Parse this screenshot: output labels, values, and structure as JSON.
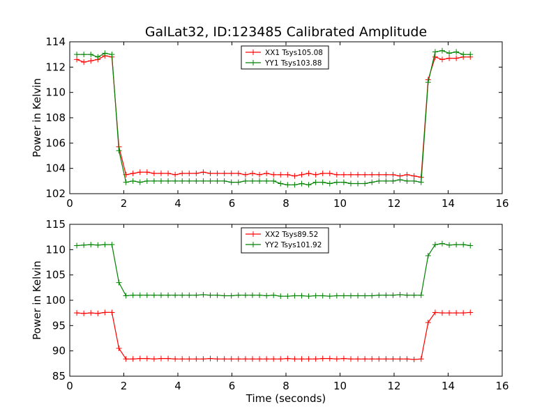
{
  "figure_title": "GalLat32, ID:123485 Calibrated Amplitude",
  "colors": {
    "xx": "#ff0000",
    "yy": "#008000",
    "axes": "#000000",
    "background": "#ffffff"
  },
  "chart_data": [
    {
      "type": "line",
      "title": "GalLat32, ID:123485 Calibrated Amplitude",
      "xlabel": "",
      "ylabel": "Power in Kelvin",
      "xlim": [
        0,
        16
      ],
      "ylim": [
        102,
        114
      ],
      "xticks": [
        0,
        2,
        4,
        6,
        8,
        10,
        12,
        14,
        16
      ],
      "yticks": [
        102,
        104,
        106,
        108,
        110,
        112,
        114
      ],
      "grid": false,
      "legend_position": "top-center",
      "marker": "plus",
      "x": [
        0.26,
        0.52,
        0.78,
        1.04,
        1.3,
        1.56,
        1.82,
        2.08,
        2.34,
        2.6,
        2.86,
        3.12,
        3.38,
        3.64,
        3.9,
        4.16,
        4.42,
        4.68,
        4.94,
        5.2,
        5.46,
        5.72,
        5.98,
        6.24,
        6.5,
        6.76,
        7.02,
        7.28,
        7.54,
        7.8,
        8.06,
        8.32,
        8.58,
        8.84,
        9.1,
        9.36,
        9.62,
        9.88,
        10.14,
        10.4,
        10.66,
        10.92,
        11.18,
        11.44,
        11.7,
        11.96,
        12.22,
        12.48,
        12.74,
        13.0,
        13.26,
        13.52,
        13.78,
        14.04,
        14.3,
        14.56,
        14.82
      ],
      "series": [
        {
          "name": "XX1 Tsys105.08",
          "color": "#ff0000",
          "values": [
            112.6,
            112.4,
            112.5,
            112.6,
            112.9,
            112.8,
            105.7,
            103.5,
            103.6,
            103.7,
            103.7,
            103.6,
            103.6,
            103.6,
            103.5,
            103.6,
            103.6,
            103.6,
            103.7,
            103.6,
            103.6,
            103.6,
            103.6,
            103.6,
            103.5,
            103.6,
            103.5,
            103.6,
            103.5,
            103.5,
            103.5,
            103.4,
            103.5,
            103.6,
            103.5,
            103.6,
            103.6,
            103.5,
            103.5,
            103.5,
            103.5,
            103.5,
            103.5,
            103.5,
            103.5,
            103.5,
            103.4,
            103.5,
            103.4,
            103.3,
            111.0,
            112.8,
            112.6,
            112.7,
            112.7,
            112.8,
            112.8
          ]
        },
        {
          "name": "YY1 Tsys103.88",
          "color": "#008000",
          "values": [
            113.0,
            113.0,
            113.0,
            112.8,
            113.1,
            113.0,
            105.4,
            102.9,
            103.0,
            102.9,
            103.0,
            103.0,
            103.0,
            103.0,
            103.0,
            103.0,
            103.0,
            103.0,
            103.0,
            103.0,
            103.0,
            103.0,
            102.9,
            102.9,
            103.0,
            103.0,
            103.0,
            103.0,
            103.0,
            102.8,
            102.7,
            102.7,
            102.8,
            102.7,
            102.9,
            102.9,
            102.8,
            102.9,
            102.9,
            102.8,
            102.8,
            102.8,
            102.9,
            103.0,
            103.0,
            103.0,
            103.1,
            103.0,
            103.0,
            102.9,
            110.8,
            113.2,
            113.3,
            113.1,
            113.2,
            113.0,
            113.0
          ]
        }
      ]
    },
    {
      "type": "line",
      "title": "",
      "xlabel": "Time (seconds)",
      "ylabel": "Power in Kelvin",
      "xlim": [
        0,
        16
      ],
      "ylim": [
        85,
        115
      ],
      "xticks": [
        0,
        2,
        4,
        6,
        8,
        10,
        12,
        14,
        16
      ],
      "yticks": [
        85,
        90,
        95,
        100,
        105,
        110,
        115
      ],
      "grid": false,
      "legend_position": "top-center",
      "marker": "plus",
      "x": [
        0.26,
        0.52,
        0.78,
        1.04,
        1.3,
        1.56,
        1.82,
        2.08,
        2.34,
        2.6,
        2.86,
        3.12,
        3.38,
        3.64,
        3.9,
        4.16,
        4.42,
        4.68,
        4.94,
        5.2,
        5.46,
        5.72,
        5.98,
        6.24,
        6.5,
        6.76,
        7.02,
        7.28,
        7.54,
        7.8,
        8.06,
        8.32,
        8.58,
        8.84,
        9.1,
        9.36,
        9.62,
        9.88,
        10.14,
        10.4,
        10.66,
        10.92,
        11.18,
        11.44,
        11.7,
        11.96,
        12.22,
        12.48,
        12.74,
        13.0,
        13.26,
        13.52,
        13.78,
        14.04,
        14.3,
        14.56,
        14.82
      ],
      "series": [
        {
          "name": "XX2 Tsys89.52",
          "color": "#ff0000",
          "values": [
            97.5,
            97.4,
            97.5,
            97.4,
            97.6,
            97.6,
            90.5,
            88.4,
            88.4,
            88.5,
            88.5,
            88.4,
            88.5,
            88.5,
            88.4,
            88.4,
            88.4,
            88.4,
            88.4,
            88.5,
            88.4,
            88.4,
            88.4,
            88.4,
            88.4,
            88.4,
            88.4,
            88.4,
            88.4,
            88.4,
            88.5,
            88.4,
            88.4,
            88.4,
            88.4,
            88.5,
            88.5,
            88.4,
            88.5,
            88.4,
            88.4,
            88.4,
            88.4,
            88.4,
            88.4,
            88.4,
            88.4,
            88.4,
            88.3,
            88.4,
            95.6,
            97.6,
            97.5,
            97.5,
            97.5,
            97.5,
            97.6
          ]
        },
        {
          "name": "YY2 Tsys101.92",
          "color": "#008000",
          "values": [
            110.8,
            110.9,
            111.0,
            110.9,
            111.0,
            111.0,
            103.5,
            100.9,
            101.0,
            101.0,
            101.0,
            101.0,
            101.0,
            101.0,
            101.0,
            101.0,
            101.0,
            101.0,
            101.1,
            101.0,
            101.0,
            100.9,
            100.9,
            101.0,
            101.0,
            101.0,
            101.0,
            100.9,
            101.0,
            100.8,
            100.8,
            100.9,
            100.9,
            100.8,
            100.9,
            100.9,
            100.8,
            100.9,
            100.9,
            100.9,
            100.9,
            100.9,
            100.9,
            101.0,
            101.0,
            101.0,
            101.1,
            101.0,
            101.0,
            101.0,
            108.8,
            111.0,
            111.2,
            110.9,
            111.0,
            111.0,
            110.8
          ]
        }
      ]
    }
  ]
}
